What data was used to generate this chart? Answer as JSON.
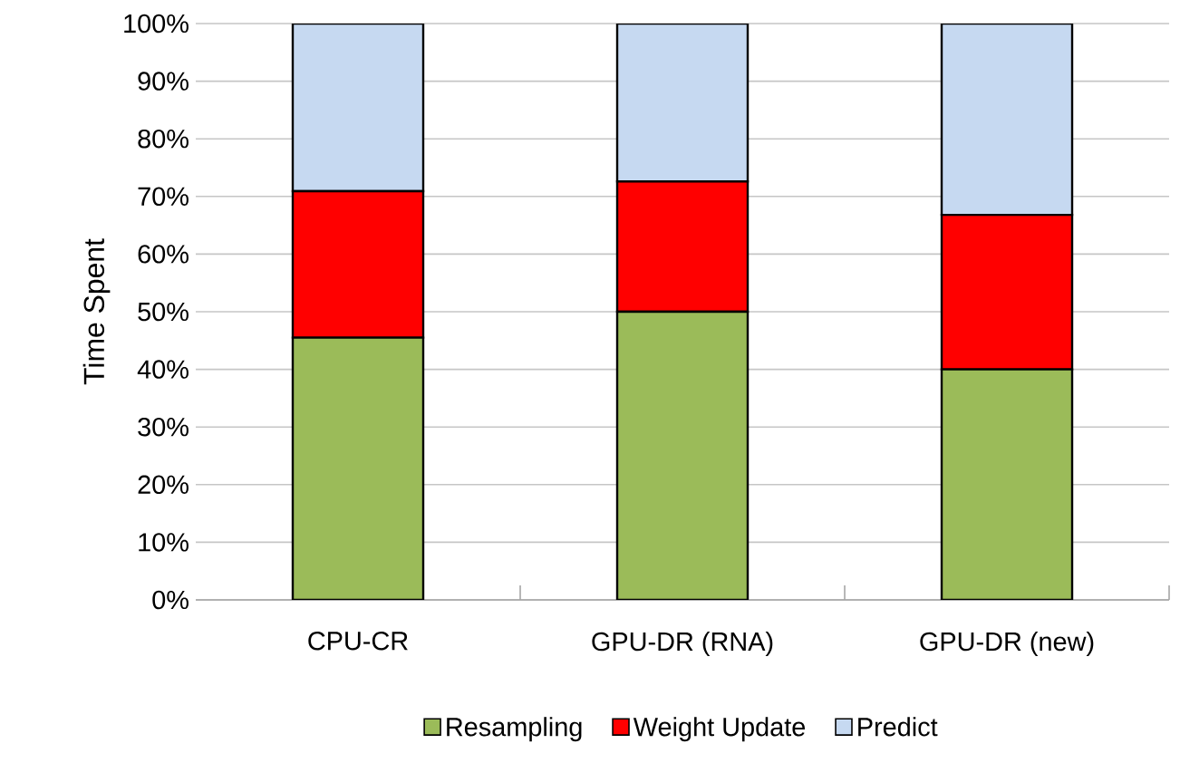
{
  "chart_data": {
    "type": "bar",
    "stacked": true,
    "ylabel": "Time Spent",
    "categories": [
      "CPU-CR",
      "GPU-DR (RNA)",
      "GPU-DR (new)"
    ],
    "series": [
      {
        "name": "Resampling",
        "color": "#9bbb59",
        "values": [
          45.5,
          50.0,
          40.0
        ]
      },
      {
        "name": "Weight Update",
        "color": "#ff0000",
        "values": [
          25.4,
          22.6,
          26.8
        ]
      },
      {
        "name": "Predict",
        "color": "#c6d9f1",
        "values": [
          29.1,
          27.4,
          33.2
        ]
      }
    ],
    "ylim": [
      0,
      100
    ],
    "yticks": [
      {
        "value": 0,
        "label": "0%"
      },
      {
        "value": 10,
        "label": "10%"
      },
      {
        "value": 20,
        "label": "20%"
      },
      {
        "value": 30,
        "label": "30%"
      },
      {
        "value": 40,
        "label": "40%"
      },
      {
        "value": 50,
        "label": "50%"
      },
      {
        "value": 60,
        "label": "60%"
      },
      {
        "value": 70,
        "label": "70%"
      },
      {
        "value": 80,
        "label": "80%"
      },
      {
        "value": 90,
        "label": "90%"
      },
      {
        "value": 100,
        "label": "100%"
      }
    ],
    "grid": "y",
    "legend": "bottom"
  }
}
